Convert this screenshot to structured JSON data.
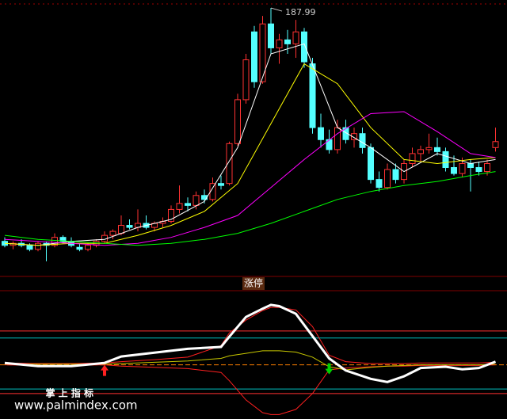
{
  "chart_data": [
    {
      "type": "candlestick",
      "open": [
        71,
        69,
        70,
        69,
        67,
        70,
        69,
        73,
        71,
        68,
        67,
        69,
        71,
        74,
        75,
        79,
        78,
        80,
        78,
        80,
        81,
        87,
        90,
        89,
        94,
        92,
        100,
        100,
        120,
        142,
        176,
        151,
        180,
        168,
        172,
        170,
        176,
        160,
        128,
        122,
        117,
        128,
        122,
        125,
        118,
        102,
        98,
        107,
        102,
        110,
        115,
        117,
        118,
        116,
        108,
        105,
        110,
        108,
        106,
        118
      ],
      "high": [
        73,
        71,
        72,
        70,
        71,
        71,
        75,
        74,
        73,
        70,
        70,
        72,
        76,
        77,
        84,
        82,
        87,
        84,
        81,
        83,
        89,
        99,
        93,
        96,
        97,
        103,
        104,
        121,
        145,
        165,
        179,
        184,
        187.99,
        175,
        177,
        182,
        178,
        163,
        135,
        127,
        132,
        132,
        128,
        128,
        120,
        106,
        110,
        110,
        112,
        118,
        119,
        125,
        123,
        118,
        114,
        113,
        112,
        111,
        112,
        128
      ],
      "low": [
        68,
        67,
        68,
        66,
        66,
        61,
        68,
        70,
        68,
        66,
        66,
        68,
        70,
        72,
        74,
        77,
        76,
        77,
        76,
        78,
        80,
        85,
        86,
        87,
        90,
        91,
        97,
        99,
        119,
        140,
        148,
        150,
        165,
        160,
        165,
        163,
        158,
        125,
        118,
        115,
        115,
        120,
        118,
        115,
        100,
        96,
        97,
        100,
        100,
        108,
        111,
        115,
        114,
        106,
        104,
        103,
        96,
        104,
        104,
        116
      ],
      "close": [
        69,
        70,
        69,
        67,
        70,
        69,
        73,
        71,
        69,
        67,
        69,
        71,
        74,
        76,
        79,
        78,
        80,
        78,
        80,
        81,
        87,
        90,
        89,
        94,
        92,
        100,
        99,
        120,
        142,
        162,
        151,
        180,
        168,
        172,
        170,
        176,
        161,
        128,
        122,
        117,
        128,
        122,
        125,
        118,
        102,
        98,
        107,
        102,
        110,
        115,
        117,
        118,
        116,
        108,
        105,
        110,
        108,
        106,
        110,
        121
      ],
      "up_color": "#ff3232",
      "down_color": "#54ffff",
      "ylim": [
        55,
        190
      ],
      "series": [
        {
          "color": "#ffffff",
          "x": [
            0,
            4,
            8,
            12,
            16,
            20,
            24,
            28,
            32,
            36,
            40,
            44,
            48,
            52,
            56,
            59
          ],
          "values": [
            70,
            69,
            71,
            72,
            78,
            82,
            91,
            118,
            165,
            170,
            128,
            118,
            106,
            115,
            110,
            112
          ]
        },
        {
          "color": "#ffff00",
          "x": [
            0,
            4,
            8,
            12,
            16,
            20,
            24,
            28,
            32,
            36,
            40,
            44,
            48,
            52,
            56,
            59
          ],
          "values": [
            70,
            69,
            70,
            70,
            74,
            79,
            86,
            100,
            130,
            160,
            150,
            128,
            112,
            110,
            112,
            113
          ]
        },
        {
          "color": "#ff00ff",
          "x": [
            0,
            4,
            8,
            12,
            16,
            20,
            24,
            28,
            32,
            36,
            40,
            44,
            48,
            52,
            56,
            59
          ],
          "values": [
            72,
            71,
            70,
            69,
            70,
            73,
            78,
            84,
            98,
            112,
            125,
            135,
            136,
            126,
            115,
            113
          ]
        },
        {
          "color": "#00ff00",
          "x": [
            0,
            4,
            8,
            12,
            16,
            20,
            24,
            28,
            32,
            36,
            40,
            44,
            48,
            52,
            56,
            59
          ],
          "values": [
            74,
            72,
            71,
            70,
            69,
            70,
            72,
            75,
            80,
            86,
            92,
            96,
            99,
            101,
            104,
            106
          ]
        }
      ],
      "annotation": "涨停"
    },
    {
      "type": "line",
      "x": [
        0,
        4,
        8,
        12,
        14,
        18,
        22,
        26,
        27,
        29,
        31,
        32,
        33,
        35,
        37,
        39,
        41,
        44,
        46,
        48,
        50,
        53,
        55,
        57,
        59
      ],
      "ylim": [
        -80,
        110
      ],
      "levels": [
        {
          "value": 53,
          "color": "#ff3030"
        },
        {
          "value": 42,
          "color": "#00c0c0"
        },
        {
          "value": -38,
          "color": "#00c0c0"
        },
        {
          "value": -45,
          "color": "#ff3030"
        },
        {
          "value": 0,
          "color": "#ff8000"
        }
      ],
      "series": [
        {
          "color": "#ff2020",
          "values": [
            3,
            2,
            2,
            3,
            5,
            8,
            12,
            30,
            50,
            70,
            85,
            90,
            90,
            86,
            60,
            15,
            5,
            2,
            2,
            2,
            3,
            3,
            3,
            3,
            4
          ]
        },
        {
          "color": "#ff2020",
          "values": [
            0,
            -1,
            -1,
            0,
            -2,
            -4,
            -6,
            -12,
            -25,
            -55,
            -75,
            -78,
            -78,
            -70,
            -45,
            -8,
            -5,
            -3,
            -2,
            -2,
            -1,
            -1,
            -1,
            -1,
            0
          ]
        },
        {
          "color": "#c8c800",
          "values": [
            1,
            1,
            1,
            1,
            2,
            4,
            6,
            10,
            14,
            18,
            22,
            22,
            22,
            20,
            12,
            -3,
            -8,
            -4,
            -2,
            -1,
            0,
            0,
            0,
            0,
            1
          ]
        },
        {
          "color": "#ffffff",
          "values": [
            3,
            -2,
            -2,
            3,
            13,
            19,
            25,
            28,
            44,
            75,
            88,
            94,
            92,
            80,
            45,
            10,
            -9,
            -22,
            -27,
            -18,
            -5,
            -3,
            -7,
            -5,
            5
          ]
        }
      ],
      "buy_signals": [
        12
      ],
      "sell_signals": [
        39
      ],
      "buy_color": "#ff2020",
      "sell_color": "#00d000"
    }
  ],
  "watermark": {
    "title": "掌 上 指 标",
    "url": "www.palmindex.com"
  }
}
